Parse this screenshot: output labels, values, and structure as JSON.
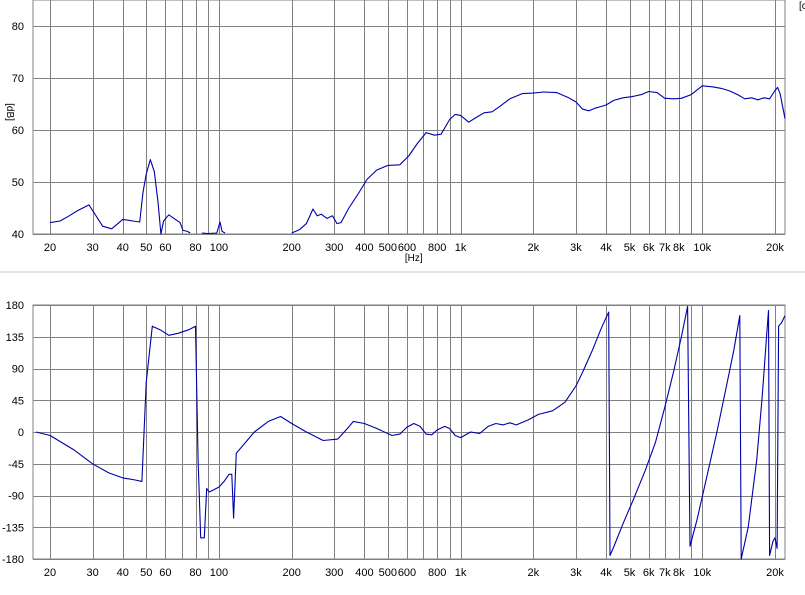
{
  "chart_data": [
    {
      "type": "line",
      "title": "",
      "xlabel": "[Hz]",
      "ylabel": "[dB]",
      "xscale": "log",
      "xlim": [
        17,
        22000
      ],
      "ylim": [
        40,
        85
      ],
      "grid": true,
      "legend": "none",
      "corner_label": "[c",
      "line_color": "#0000aa",
      "grid_color": "#808080",
      "x_ticks": [
        {
          "v": 20,
          "label": "20"
        },
        {
          "v": 30,
          "label": "30"
        },
        {
          "v": 40,
          "label": "40"
        },
        {
          "v": 50,
          "label": "50"
        },
        {
          "v": 60,
          "label": "60"
        },
        {
          "v": 80,
          "label": "80"
        },
        {
          "v": 100,
          "label": "100"
        },
        {
          "v": 200,
          "label": "200"
        },
        {
          "v": 300,
          "label": "300"
        },
        {
          "v": 400,
          "label": "400"
        },
        {
          "v": 500,
          "label": "500"
        },
        {
          "v": 600,
          "label": "600"
        },
        {
          "v": 800,
          "label": "800"
        },
        {
          "v": 1000,
          "label": "1k"
        },
        {
          "v": 2000,
          "label": "2k"
        },
        {
          "v": 3000,
          "label": "3k"
        },
        {
          "v": 4000,
          "label": "4k"
        },
        {
          "v": 5000,
          "label": "5k"
        },
        {
          "v": 6000,
          "label": "6k"
        },
        {
          "v": 7000,
          "label": "7k"
        },
        {
          "v": 8000,
          "label": "8k"
        },
        {
          "v": 10000,
          "label": "10k"
        },
        {
          "v": 20000,
          "label": "20k"
        }
      ],
      "y_ticks": [
        {
          "v": 40,
          "label": "40"
        },
        {
          "v": 50,
          "label": "50"
        },
        {
          "v": 60,
          "label": "60"
        },
        {
          "v": 70,
          "label": "70"
        },
        {
          "v": 80,
          "label": "80"
        }
      ],
      "segments": [
        [
          [
            20,
            42.2
          ],
          [
            22,
            42.5
          ],
          [
            24,
            43.5
          ],
          [
            26,
            44.5
          ],
          [
            29,
            45.6
          ],
          [
            31,
            43.5
          ],
          [
            33,
            41.5
          ],
          [
            36,
            41
          ],
          [
            40,
            42.8
          ],
          [
            44,
            42.5
          ],
          [
            47,
            42.3
          ],
          [
            48.5,
            48
          ],
          [
            50,
            51.5
          ],
          [
            52,
            54.3
          ],
          [
            54,
            52
          ],
          [
            56,
            46
          ],
          [
            57.5,
            40
          ],
          [
            59,
            42.5
          ],
          [
            62,
            43.7
          ],
          [
            66,
            42.8
          ],
          [
            69,
            42.2
          ],
          [
            71,
            40.7
          ],
          [
            74,
            40.5
          ],
          [
            76,
            40.2
          ]
        ],
        [
          [
            85,
            40.2
          ],
          [
            90,
            40.1
          ],
          [
            98,
            40.2
          ],
          [
            101,
            42.3
          ],
          [
            103,
            40.5
          ],
          [
            106,
            40.2
          ]
        ],
        [
          [
            200,
            40.2
          ],
          [
            215,
            40.8
          ],
          [
            230,
            42
          ],
          [
            245,
            44.8
          ],
          [
            255,
            43.5
          ],
          [
            265,
            43.8
          ],
          [
            280,
            43
          ],
          [
            295,
            43.5
          ],
          [
            308,
            42
          ],
          [
            320,
            42.2
          ],
          [
            345,
            45
          ],
          [
            380,
            48
          ],
          [
            410,
            50.5
          ],
          [
            450,
            52.3
          ],
          [
            500,
            53.2
          ],
          [
            560,
            53.3
          ],
          [
            610,
            55
          ],
          [
            660,
            57.3
          ],
          [
            720,
            59.5
          ],
          [
            780,
            59
          ],
          [
            830,
            59.2
          ],
          [
            900,
            62
          ],
          [
            950,
            63
          ],
          [
            1000,
            62.8
          ],
          [
            1080,
            61.5
          ],
          [
            1150,
            62.3
          ],
          [
            1250,
            63.3
          ],
          [
            1350,
            63.5
          ],
          [
            1450,
            64.5
          ],
          [
            1600,
            66
          ],
          [
            1800,
            67
          ],
          [
            2000,
            67.1
          ],
          [
            2200,
            67.3
          ],
          [
            2500,
            67.2
          ],
          [
            2800,
            66.2
          ],
          [
            3000,
            65.4
          ],
          [
            3200,
            64
          ],
          [
            3400,
            63.7
          ],
          [
            3600,
            64.2
          ],
          [
            3800,
            64.5
          ],
          [
            4000,
            64.8
          ],
          [
            4300,
            65.7
          ],
          [
            4700,
            66.2
          ],
          [
            5100,
            66.4
          ],
          [
            5600,
            66.8
          ],
          [
            6000,
            67.4
          ],
          [
            6500,
            67.2
          ],
          [
            7000,
            66.1
          ],
          [
            7600,
            66
          ],
          [
            8200,
            66.1
          ],
          [
            9000,
            66.8
          ],
          [
            10000,
            68.5
          ],
          [
            11000,
            68.3
          ],
          [
            12000,
            68
          ],
          [
            13000,
            67.5
          ],
          [
            14000,
            66.8
          ],
          [
            15000,
            66
          ],
          [
            16000,
            66.2
          ],
          [
            17000,
            65.8
          ],
          [
            18000,
            66.2
          ],
          [
            19000,
            66
          ],
          [
            20000,
            67.6
          ],
          [
            20500,
            68.2
          ],
          [
            21000,
            67
          ],
          [
            22000,
            62.2
          ]
        ]
      ]
    },
    {
      "type": "line",
      "title": "",
      "xlabel": "",
      "ylabel": "",
      "xscale": "log",
      "xlim": [
        17,
        22000
      ],
      "ylim": [
        -180,
        180
      ],
      "grid": true,
      "legend": "none",
      "line_color": "#0000aa",
      "grid_color": "#808080",
      "x_ticks": [
        {
          "v": 20,
          "label": "20"
        },
        {
          "v": 30,
          "label": "30"
        },
        {
          "v": 40,
          "label": "40"
        },
        {
          "v": 50,
          "label": "50"
        },
        {
          "v": 60,
          "label": "60"
        },
        {
          "v": 80,
          "label": "80"
        },
        {
          "v": 100,
          "label": "100"
        },
        {
          "v": 200,
          "label": "200"
        },
        {
          "v": 300,
          "label": "300"
        },
        {
          "v": 400,
          "label": "400"
        },
        {
          "v": 500,
          "label": "500"
        },
        {
          "v": 600,
          "label": "600"
        },
        {
          "v": 800,
          "label": "800"
        },
        {
          "v": 1000,
          "label": "1k"
        },
        {
          "v": 2000,
          "label": "2k"
        },
        {
          "v": 3000,
          "label": "3k"
        },
        {
          "v": 4000,
          "label": "4k"
        },
        {
          "v": 5000,
          "label": "5k"
        },
        {
          "v": 6000,
          "label": "6k"
        },
        {
          "v": 7000,
          "label": "7k"
        },
        {
          "v": 8000,
          "label": "8k"
        },
        {
          "v": 10000,
          "label": "10k"
        },
        {
          "v": 20000,
          "label": "20k"
        }
      ],
      "y_ticks": [
        {
          "v": 180,
          "label": "180"
        },
        {
          "v": 135,
          "label": "135"
        },
        {
          "v": 90,
          "label": "90"
        },
        {
          "v": 45,
          "label": "45"
        },
        {
          "v": 0,
          "label": "0"
        },
        {
          "v": -45,
          "label": "-45"
        },
        {
          "v": -90,
          "label": "-90"
        },
        {
          "v": -135,
          "label": "-135"
        },
        {
          "v": -180,
          "label": "-180"
        }
      ],
      "segments": [
        [
          [
            17.5,
            0
          ],
          [
            20,
            -5
          ],
          [
            25,
            -25
          ],
          [
            30,
            -45
          ],
          [
            35,
            -58
          ],
          [
            40,
            -65
          ],
          [
            45,
            -68
          ],
          [
            48,
            -70
          ],
          [
            50,
            70
          ],
          [
            53,
            150
          ],
          [
            57,
            145
          ],
          [
            62,
            137
          ],
          [
            68,
            140
          ],
          [
            75,
            145
          ],
          [
            80,
            150
          ],
          [
            82,
            -40
          ],
          [
            84,
            -150
          ],
          [
            87,
            -150
          ],
          [
            89,
            -80
          ],
          [
            91,
            -85
          ],
          [
            95,
            -82
          ],
          [
            100,
            -78
          ],
          [
            105,
            -70
          ],
          [
            110,
            -60
          ],
          [
            113,
            -60
          ],
          [
            115,
            -122
          ],
          [
            118,
            -30
          ],
          [
            125,
            -20
          ],
          [
            140,
            0
          ],
          [
            160,
            15
          ],
          [
            180,
            22
          ],
          [
            200,
            12
          ],
          [
            230,
            0
          ],
          [
            270,
            -12
          ],
          [
            310,
            -10
          ],
          [
            340,
            5
          ],
          [
            360,
            15
          ],
          [
            400,
            12
          ],
          [
            450,
            5
          ],
          [
            520,
            -5
          ],
          [
            560,
            -3
          ],
          [
            600,
            7
          ],
          [
            640,
            12
          ],
          [
            680,
            8
          ],
          [
            720,
            -3
          ],
          [
            760,
            -4
          ],
          [
            800,
            3
          ],
          [
            860,
            8
          ],
          [
            900,
            5
          ],
          [
            950,
            -5
          ],
          [
            1000,
            -8
          ],
          [
            1100,
            0
          ],
          [
            1200,
            -2
          ],
          [
            1300,
            8
          ],
          [
            1400,
            12
          ],
          [
            1500,
            10
          ],
          [
            1600,
            13
          ],
          [
            1700,
            10
          ],
          [
            1900,
            17
          ],
          [
            2100,
            25
          ],
          [
            2400,
            30
          ],
          [
            2700,
            42
          ],
          [
            3000,
            65
          ],
          [
            3200,
            85
          ],
          [
            3500,
            115
          ],
          [
            3800,
            145
          ],
          [
            4000,
            162
          ],
          [
            4100,
            170
          ],
          [
            4150,
            -175
          ],
          [
            4300,
            -163
          ],
          [
            4700,
            -130
          ],
          [
            5200,
            -95
          ],
          [
            5800,
            -55
          ],
          [
            6400,
            -15
          ],
          [
            7000,
            35
          ],
          [
            7600,
            85
          ],
          [
            8200,
            135
          ],
          [
            8700,
            178
          ],
          [
            8900,
            -162
          ],
          [
            9500,
            -125
          ],
          [
            10500,
            -60
          ],
          [
            11500,
            0
          ],
          [
            12500,
            60
          ],
          [
            13500,
            115
          ],
          [
            14300,
            165
          ],
          [
            14500,
            -180
          ],
          [
            15500,
            -135
          ],
          [
            16800,
            -40
          ],
          [
            17700,
            50
          ],
          [
            18500,
            140
          ],
          [
            18800,
            172
          ],
          [
            19000,
            -175
          ],
          [
            19600,
            -155
          ],
          [
            20000,
            -150
          ],
          [
            20400,
            -165
          ],
          [
            20700,
            150
          ],
          [
            21300,
            155
          ],
          [
            22000,
            165
          ]
        ]
      ]
    }
  ]
}
